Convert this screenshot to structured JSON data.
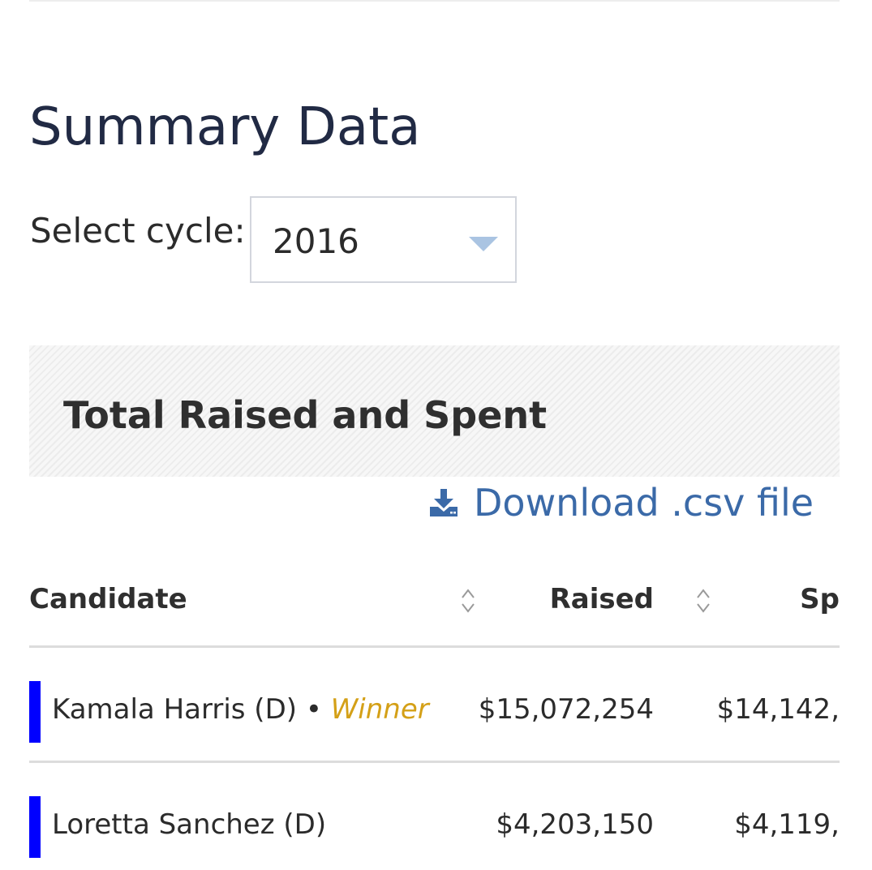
{
  "section": {
    "title": "Summary Data",
    "cycle_label": "Select cycle:",
    "cycle_value": "2016"
  },
  "panel": {
    "title": "Total Raised and Spent"
  },
  "download": {
    "label": "Download .csv file"
  },
  "table": {
    "columns": {
      "candidate": "Candidate",
      "raised": "Raised",
      "spent": "Sp"
    },
    "rows": [
      {
        "candidate": "Kamala Harris (D)",
        "separator": " • ",
        "status": "Winner",
        "raised": "$15,072,254",
        "spent": "$14,142,"
      },
      {
        "candidate": "Loretta Sanchez (D)",
        "separator": "",
        "status": "",
        "raised": "$4,203,150",
        "spent": "$4,119,"
      }
    ]
  },
  "colors": {
    "party_democrat": "#0000ff",
    "winner": "#d4a017",
    "link": "#3b6aa8",
    "title": "#212a44"
  }
}
